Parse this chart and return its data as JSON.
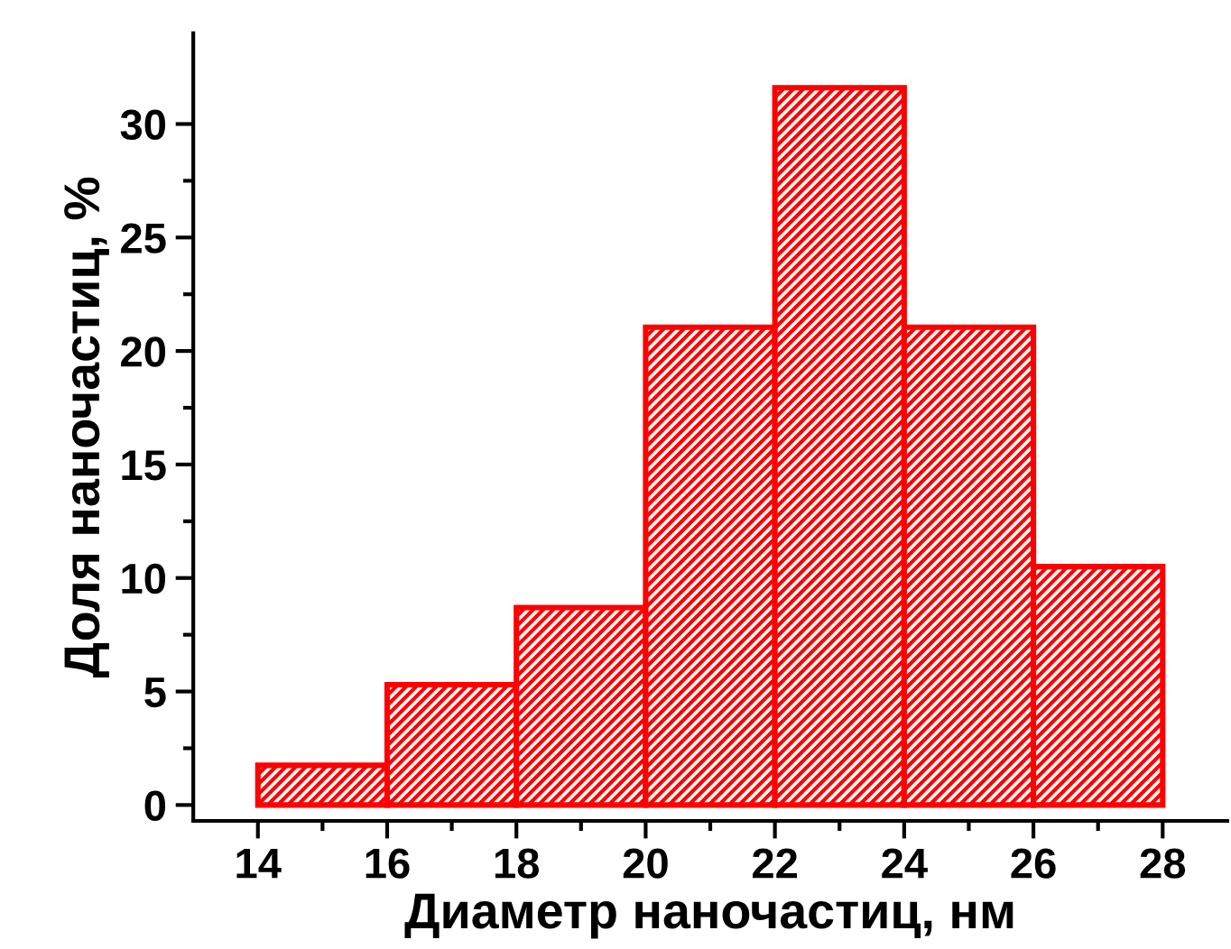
{
  "chart_data": {
    "type": "histogram",
    "xlabel": "Диаметр наночастиц, нм",
    "ylabel": "Доля наночастиц, %",
    "bins": [
      14,
      16,
      18,
      20,
      22,
      24,
      26,
      28
    ],
    "values": [
      1.75,
      5.3,
      8.7,
      21.05,
      31.6,
      21.05,
      10.5
    ],
    "color": "#ff0000",
    "xlim": [
      13,
      29
    ],
    "xticks": [
      14,
      16,
      18,
      20,
      22,
      24,
      26,
      28
    ],
    "ylim": [
      -0.7,
      34
    ],
    "yticks": [
      0,
      5,
      10,
      15,
      20,
      25,
      30
    ],
    "grid": false
  }
}
